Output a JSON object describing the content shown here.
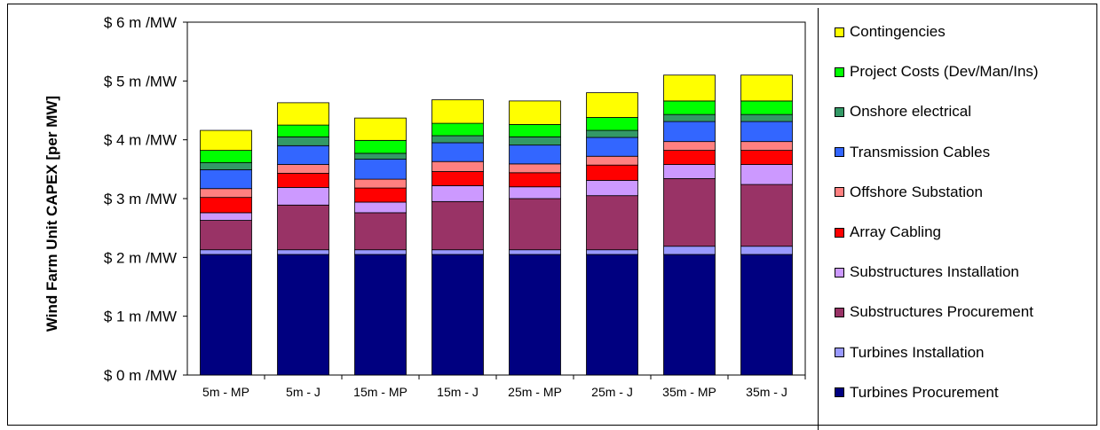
{
  "chart_data": {
    "type": "bar",
    "stacked": true,
    "ylabel": "Wind Farm Unit CAPEX [per MW]",
    "ylim": [
      0,
      6
    ],
    "yticks": [
      "$ 0 m /MW",
      "$ 1 m /MW",
      "$ 2 m /MW",
      "$ 3 m /MW",
      "$ 4 m /MW",
      "$ 5 m /MW",
      "$ 6 m /MW"
    ],
    "categories": [
      "5m - MP",
      "5m - J",
      "15m - MP",
      "15m - J",
      "25m - MP",
      "25m - J",
      "35m - MP",
      "35m - J"
    ],
    "legend_position": "right",
    "grid": false,
    "series": [
      {
        "name": "Turbines Procurement",
        "color": "#000080",
        "values": [
          2.05,
          2.05,
          2.05,
          2.05,
          2.05,
          2.05,
          2.05,
          2.05
        ]
      },
      {
        "name": "Turbines Installation",
        "color": "#9999FF",
        "values": [
          0.08,
          0.08,
          0.08,
          0.08,
          0.08,
          0.08,
          0.14,
          0.14
        ]
      },
      {
        "name": "Substructures Procurement",
        "color": "#993366",
        "values": [
          0.5,
          0.76,
          0.63,
          0.82,
          0.87,
          0.92,
          1.15,
          1.05
        ]
      },
      {
        "name": "Substructures Installation",
        "color": "#CC99FF",
        "values": [
          0.13,
          0.3,
          0.18,
          0.27,
          0.2,
          0.26,
          0.24,
          0.34
        ]
      },
      {
        "name": "Array Cabling",
        "color": "#FF0000",
        "values": [
          0.26,
          0.24,
          0.24,
          0.24,
          0.24,
          0.26,
          0.24,
          0.24
        ]
      },
      {
        "name": "Offshore Substation",
        "color": "#FF8080",
        "values": [
          0.15,
          0.15,
          0.15,
          0.17,
          0.15,
          0.15,
          0.15,
          0.15
        ]
      },
      {
        "name": "Transmission Cables",
        "color": "#3366FF",
        "values": [
          0.32,
          0.32,
          0.34,
          0.32,
          0.32,
          0.32,
          0.34,
          0.34
        ]
      },
      {
        "name": "Onshore electrical",
        "color": "#339966",
        "values": [
          0.12,
          0.15,
          0.1,
          0.12,
          0.14,
          0.12,
          0.12,
          0.12
        ]
      },
      {
        "name": "Project Costs (Dev/Man/Ins)",
        "color": "#00FF00",
        "values": [
          0.21,
          0.2,
          0.22,
          0.21,
          0.21,
          0.22,
          0.23,
          0.23
        ]
      },
      {
        "name": "Contingencies",
        "color": "#FFFF00",
        "values": [
          0.34,
          0.38,
          0.38,
          0.4,
          0.4,
          0.42,
          0.44,
          0.44
        ]
      }
    ]
  }
}
